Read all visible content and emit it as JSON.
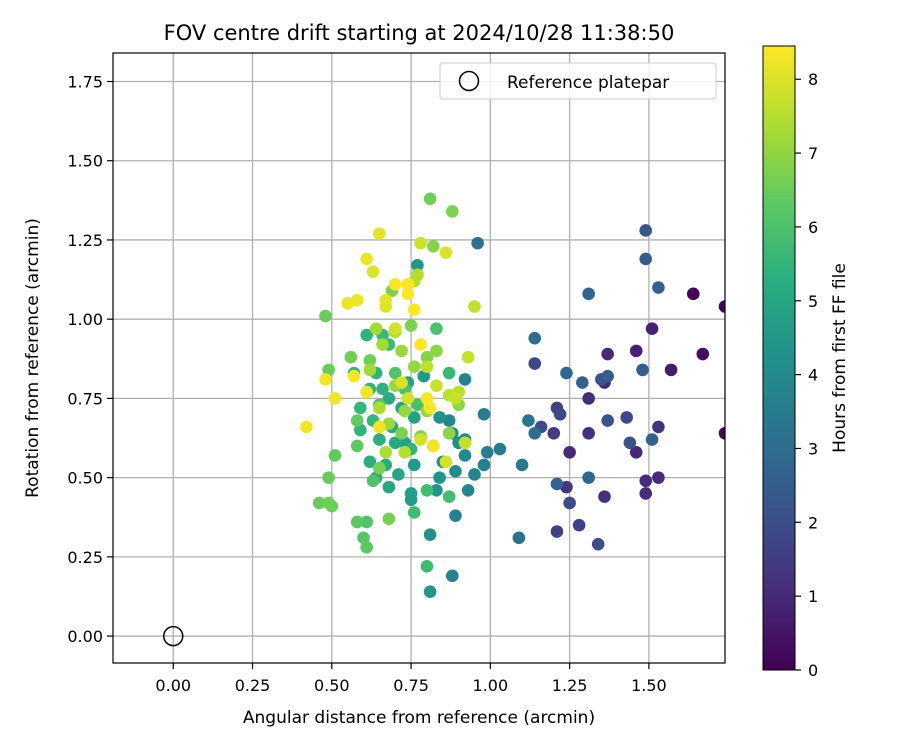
{
  "chart_data": {
    "type": "scatter",
    "title": "FOV centre drift starting at 2024/10/28 11:38:50",
    "xlabel": "Angular distance from reference (arcmin)",
    "ylabel": "Rotation from reference (arcmin)",
    "xlim": [
      -0.19,
      1.74
    ],
    "ylim": [
      -0.085,
      1.84
    ],
    "xticks": [
      0.0,
      0.25,
      0.5,
      0.75,
      1.0,
      1.25,
      1.5
    ],
    "xtick_labels": [
      "0.00",
      "0.25",
      "0.50",
      "0.75",
      "1.00",
      "1.25",
      "1.50"
    ],
    "yticks": [
      0.0,
      0.25,
      0.5,
      0.75,
      1.0,
      1.25,
      1.5,
      1.75
    ],
    "ytick_labels": [
      "0.00",
      "0.25",
      "0.50",
      "0.75",
      "1.00",
      "1.25",
      "1.50",
      "1.75"
    ],
    "grid": true,
    "legend": {
      "position": "top-right",
      "label": "Reference platepar"
    },
    "reference_point": {
      "x": 0.0,
      "y": 0.0
    },
    "colorbar": {
      "label": "Hours from first FF file",
      "min": 0,
      "max": 8.45,
      "ticks": [
        0,
        1,
        2,
        3,
        4,
        5,
        6,
        7,
        8
      ],
      "tick_labels": [
        "0",
        "1",
        "2",
        "3",
        "4",
        "5",
        "6",
        "7",
        "8"
      ],
      "colormap": "viridis"
    },
    "points": [
      [
        1.64,
        1.08,
        0.1
      ],
      [
        1.74,
        1.04,
        0.1
      ],
      [
        1.67,
        0.89,
        0.3
      ],
      [
        1.74,
        0.64,
        0.2
      ],
      [
        1.57,
        0.84,
        0.6
      ],
      [
        1.51,
        0.97,
        0.8
      ],
      [
        1.46,
        0.9,
        0.8
      ],
      [
        1.37,
        0.89,
        1.0
      ],
      [
        1.36,
        0.8,
        1.0
      ],
      [
        1.31,
        0.75,
        1.1
      ],
      [
        1.31,
        0.64,
        1.2
      ],
      [
        1.25,
        0.58,
        1.0
      ],
      [
        1.24,
        0.47,
        1.3
      ],
      [
        1.46,
        0.58,
        0.9
      ],
      [
        1.49,
        0.49,
        1.0
      ],
      [
        1.49,
        0.45,
        1.1
      ],
      [
        1.53,
        0.66,
        1.3
      ],
      [
        1.53,
        0.5,
        1.0
      ],
      [
        1.36,
        0.44,
        1.2
      ],
      [
        1.21,
        0.33,
        1.6
      ],
      [
        1.28,
        0.35,
        1.6
      ],
      [
        1.34,
        0.29,
        2.0
      ],
      [
        1.25,
        0.42,
        1.9
      ],
      [
        1.2,
        0.64,
        1.5
      ],
      [
        1.21,
        0.72,
        1.6
      ],
      [
        1.22,
        0.7,
        1.8
      ],
      [
        1.14,
        0.86,
        1.8
      ],
      [
        1.16,
        0.66,
        1.9
      ],
      [
        1.43,
        0.69,
        1.8
      ],
      [
        1.44,
        0.61,
        2.2
      ],
      [
        1.37,
        0.68,
        2.2
      ],
      [
        1.35,
        0.81,
        2.2
      ],
      [
        1.37,
        0.82,
        2.4
      ],
      [
        1.29,
        0.8,
        2.6
      ],
      [
        1.24,
        0.83,
        2.8
      ],
      [
        1.31,
        1.08,
        2.7
      ],
      [
        1.49,
        1.28,
        2.3
      ],
      [
        1.49,
        1.19,
        2.4
      ],
      [
        1.53,
        1.1,
        2.6
      ],
      [
        1.48,
        0.84,
        2.5
      ],
      [
        1.51,
        0.62,
        2.6
      ],
      [
        1.31,
        0.5,
        2.8
      ],
      [
        1.21,
        0.48,
        2.7
      ],
      [
        1.14,
        0.94,
        3.0
      ],
      [
        1.14,
        0.64,
        3.0
      ],
      [
        1.12,
        0.68,
        3.3
      ],
      [
        1.09,
        0.31,
        3.1
      ],
      [
        1.1,
        0.54,
        3.4
      ],
      [
        0.96,
        1.24,
        3.1
      ],
      [
        1.03,
        0.59,
        3.5
      ],
      [
        0.99,
        0.58,
        3.6
      ],
      [
        0.98,
        0.7,
        3.6
      ],
      [
        0.98,
        0.54,
        3.7
      ],
      [
        0.95,
        0.51,
        3.8
      ],
      [
        0.92,
        0.81,
        3.8
      ],
      [
        0.93,
        0.46,
        3.9
      ],
      [
        0.92,
        0.62,
        4.0
      ],
      [
        0.92,
        0.57,
        4.0
      ],
      [
        0.89,
        0.38,
        3.7
      ],
      [
        0.88,
        0.19,
        3.7
      ],
      [
        0.87,
        0.68,
        3.9
      ],
      [
        0.9,
        0.61,
        4.1
      ],
      [
        0.89,
        0.52,
        4.1
      ],
      [
        0.88,
        0.64,
        4.2
      ],
      [
        0.85,
        0.55,
        4.3
      ],
      [
        0.84,
        0.69,
        4.3
      ],
      [
        0.84,
        0.5,
        4.4
      ],
      [
        0.83,
        0.46,
        4.4
      ],
      [
        0.81,
        0.32,
        4.3
      ],
      [
        0.81,
        0.14,
        4.4
      ],
      [
        0.77,
        1.17,
        4.4
      ],
      [
        0.79,
        0.82,
        4.5
      ],
      [
        0.76,
        0.54,
        4.6
      ],
      [
        0.75,
        0.45,
        4.7
      ],
      [
        0.75,
        0.43,
        4.7
      ],
      [
        0.76,
        0.69,
        4.8
      ],
      [
        0.73,
        0.61,
        4.8
      ],
      [
        0.74,
        0.8,
        4.9
      ],
      [
        0.72,
        0.72,
        4.9
      ],
      [
        0.71,
        0.51,
        5.0
      ],
      [
        0.68,
        0.47,
        5.0
      ],
      [
        0.69,
        0.66,
        5.1
      ],
      [
        0.7,
        0.61,
        5.1
      ],
      [
        0.68,
        0.75,
        5.2
      ],
      [
        0.67,
        0.54,
        5.2
      ],
      [
        0.65,
        0.62,
        5.3
      ],
      [
        0.64,
        0.5,
        5.3
      ],
      [
        0.62,
        0.55,
        5.3
      ],
      [
        0.61,
        0.95,
        5.4
      ],
      [
        0.64,
        0.83,
        5.4
      ],
      [
        0.66,
        0.78,
        5.4
      ],
      [
        0.62,
        0.78,
        5.5
      ],
      [
        0.59,
        0.65,
        5.5
      ],
      [
        0.57,
        0.83,
        5.6
      ],
      [
        0.59,
        0.72,
        5.6
      ],
      [
        0.63,
        0.68,
        5.6
      ],
      [
        0.66,
        0.95,
        5.7
      ],
      [
        0.68,
        0.92,
        5.7
      ],
      [
        0.75,
        0.59,
        5.5
      ],
      [
        0.76,
        0.39,
        5.8
      ],
      [
        0.8,
        0.22,
        5.8
      ],
      [
        0.8,
        0.46,
        5.9
      ],
      [
        0.82,
        0.6,
        6.0
      ],
      [
        0.87,
        0.44,
        5.9
      ],
      [
        0.87,
        0.83,
        5.7
      ],
      [
        0.83,
        0.97,
        6.0
      ],
      [
        0.77,
        0.73,
        6.0
      ],
      [
        0.73,
        0.78,
        6.0
      ],
      [
        0.7,
        0.83,
        6.1
      ],
      [
        0.65,
        0.73,
        6.1
      ],
      [
        0.63,
        0.49,
        6.1
      ],
      [
        0.61,
        0.36,
        6.1
      ],
      [
        0.6,
        0.31,
        6.2
      ],
      [
        0.61,
        0.28,
        6.3
      ],
      [
        0.58,
        0.36,
        6.3
      ],
      [
        0.58,
        0.6,
        6.3
      ],
      [
        0.58,
        0.68,
        6.4
      ],
      [
        0.51,
        0.57,
        6.4
      ],
      [
        0.49,
        0.5,
        6.5
      ],
      [
        0.49,
        0.84,
        6.5
      ],
      [
        0.48,
        1.01,
        6.5
      ],
      [
        0.46,
        0.42,
        6.5
      ],
      [
        0.49,
        0.42,
        6.6
      ],
      [
        0.5,
        0.41,
        6.6
      ],
      [
        0.56,
        0.88,
        6.6
      ],
      [
        0.62,
        0.87,
        6.6
      ],
      [
        0.65,
        0.53,
        6.7
      ],
      [
        0.68,
        0.37,
        6.7
      ],
      [
        0.69,
        1.09,
        6.8
      ],
      [
        0.72,
        0.64,
        6.8
      ],
      [
        0.75,
        0.98,
        6.8
      ],
      [
        0.78,
        0.63,
        6.9
      ],
      [
        0.8,
        0.88,
        6.9
      ],
      [
        0.81,
        1.38,
        6.6
      ],
      [
        0.82,
        1.23,
        6.9
      ],
      [
        0.88,
        1.34,
        6.8
      ],
      [
        0.9,
        0.73,
        7.0
      ],
      [
        0.87,
        0.64,
        7.0
      ],
      [
        0.83,
        0.9,
        7.0
      ],
      [
        0.8,
        0.71,
        7.1
      ],
      [
        0.76,
        0.85,
        7.1
      ],
      [
        0.73,
        0.71,
        7.1
      ],
      [
        0.72,
        0.9,
        7.2
      ],
      [
        0.7,
        0.79,
        7.2
      ],
      [
        0.68,
        0.67,
        7.2
      ],
      [
        0.66,
        0.92,
        7.3
      ],
      [
        0.64,
        0.97,
        7.3
      ],
      [
        0.62,
        0.84,
        7.3
      ],
      [
        0.65,
        0.72,
        7.4
      ],
      [
        0.67,
        0.58,
        7.4
      ],
      [
        0.7,
        0.96,
        7.4
      ],
      [
        0.73,
        0.58,
        7.5
      ],
      [
        0.76,
        1.12,
        7.5
      ],
      [
        0.77,
        1.14,
        7.5
      ],
      [
        0.8,
        0.85,
        7.6
      ],
      [
        0.87,
        0.76,
        7.6
      ],
      [
        0.9,
        0.77,
        7.6
      ],
      [
        0.92,
        0.61,
        7.7
      ],
      [
        0.93,
        0.88,
        7.7
      ],
      [
        0.95,
        1.04,
        7.7
      ],
      [
        0.78,
        1.24,
        7.8
      ],
      [
        0.86,
        1.21,
        8.0
      ],
      [
        0.89,
        0.75,
        7.8
      ],
      [
        0.86,
        0.55,
        7.9
      ],
      [
        0.83,
        0.79,
        7.8
      ],
      [
        0.78,
        0.62,
        7.9
      ],
      [
        0.74,
        0.75,
        7.9
      ],
      [
        0.72,
        0.8,
        8.0
      ],
      [
        0.7,
        0.97,
        7.9
      ],
      [
        0.67,
        1.04,
        8.0
      ],
      [
        0.67,
        1.06,
        8.1
      ],
      [
        0.63,
        1.15,
        8.0
      ],
      [
        0.65,
        1.27,
        8.1
      ],
      [
        0.61,
        1.19,
        8.2
      ],
      [
        0.58,
        1.06,
        8.2
      ],
      [
        0.55,
        1.05,
        8.2
      ],
      [
        0.51,
        0.75,
        8.3
      ],
      [
        0.48,
        0.81,
        8.3
      ],
      [
        0.42,
        0.66,
        8.3
      ],
      [
        0.57,
        0.82,
        8.4
      ],
      [
        0.61,
        0.77,
        8.3
      ],
      [
        0.65,
        0.66,
        8.3
      ],
      [
        0.7,
        1.11,
        8.4
      ],
      [
        0.74,
        1.11,
        8.4
      ],
      [
        0.74,
        1.08,
        8.4
      ],
      [
        0.76,
        1.03,
        8.4
      ],
      [
        0.78,
        0.92,
        8.4
      ],
      [
        0.8,
        0.75,
        8.4
      ],
      [
        0.81,
        0.72,
        8.4
      ],
      [
        0.82,
        0.6,
        8.3
      ]
    ]
  }
}
